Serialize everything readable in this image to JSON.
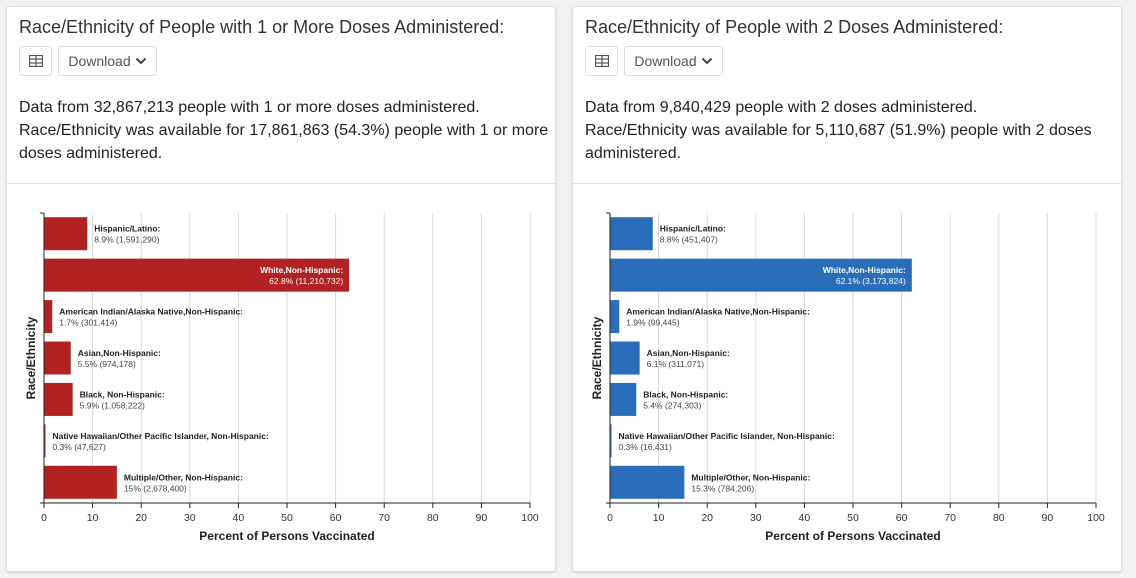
{
  "panels": [
    {
      "title": "Race/Ethnicity of People with 1 or More Doses Administered:",
      "download_label": "Download",
      "summary_line1": "Data from 32,867,213 people with 1 or more doses administered.",
      "summary_line2": "Race/Ethnicity was available for 17,861,863 (54.3%) people with 1 or more doses administered.",
      "color": "#b22222"
    },
    {
      "title": "Race/Ethnicity of People with 2 Doses Administered:",
      "download_label": "Download",
      "summary_line1": "Data from 9,840,429 people with 2 doses administered.",
      "summary_line2": "Race/Ethnicity was available for 5,110,687 (51.9%) people with 2 doses administered.",
      "color": "#2a6ebb"
    }
  ],
  "chart_data": [
    {
      "type": "bar",
      "orientation": "horizontal",
      "ylabel": "Race/Ethnicity",
      "xlabel": "Percent of Persons Vaccinated",
      "xlim": [
        0,
        100
      ],
      "xticks": [
        0,
        10,
        20,
        30,
        40,
        50,
        60,
        70,
        80,
        90,
        100
      ],
      "grid": true,
      "color": "#b22222",
      "categories": [
        "Hispanic/Latino:",
        "White,Non-Hispanic:",
        "American Indian/Alaska Native,Non-Hispanic:",
        "Asian,Non-Hispanic:",
        "Black, Non-Hispanic:",
        "Native Hawaiian/Other Pacific Islander, Non-Hispanic:",
        "Multiple/Other, Non-Hispanic:"
      ],
      "values": [
        8.9,
        62.8,
        1.7,
        5.5,
        5.9,
        0.3,
        15
      ],
      "value_labels": [
        "8.9% (1,591,290)",
        "62.8% (11,210,732)",
        "1.7% (301,414)",
        "5.5% (974,178)",
        "5.9% (1,058,222)",
        "0.3% (47,627)",
        "15% (2,678,400)"
      ]
    },
    {
      "type": "bar",
      "orientation": "horizontal",
      "ylabel": "Race/Ethnicity",
      "xlabel": "Percent of Persons Vaccinated",
      "xlim": [
        0,
        100
      ],
      "xticks": [
        0,
        10,
        20,
        30,
        40,
        50,
        60,
        70,
        80,
        90,
        100
      ],
      "grid": true,
      "color": "#2a6ebb",
      "categories": [
        "Hispanic/Latino:",
        "White,Non-Hispanic:",
        "American Indian/Alaska Native,Non-Hispanic:",
        "Asian,Non-Hispanic:",
        "Black, Non-Hispanic:",
        "Native Hawaiian/Other Pacific Islander, Non-Hispanic:",
        "Multiple/Other, Non-Hispanic:"
      ],
      "values": [
        8.8,
        62.1,
        1.9,
        6.1,
        5.4,
        0.3,
        15.3
      ],
      "value_labels": [
        "8.8% (451,407)",
        "62.1% (3,173,824)",
        "1.9% (99,445)",
        "6.1% (311,071)",
        "5.4% (274,303)",
        "0.3% (16,431)",
        "15.3% (784,206)"
      ]
    }
  ]
}
